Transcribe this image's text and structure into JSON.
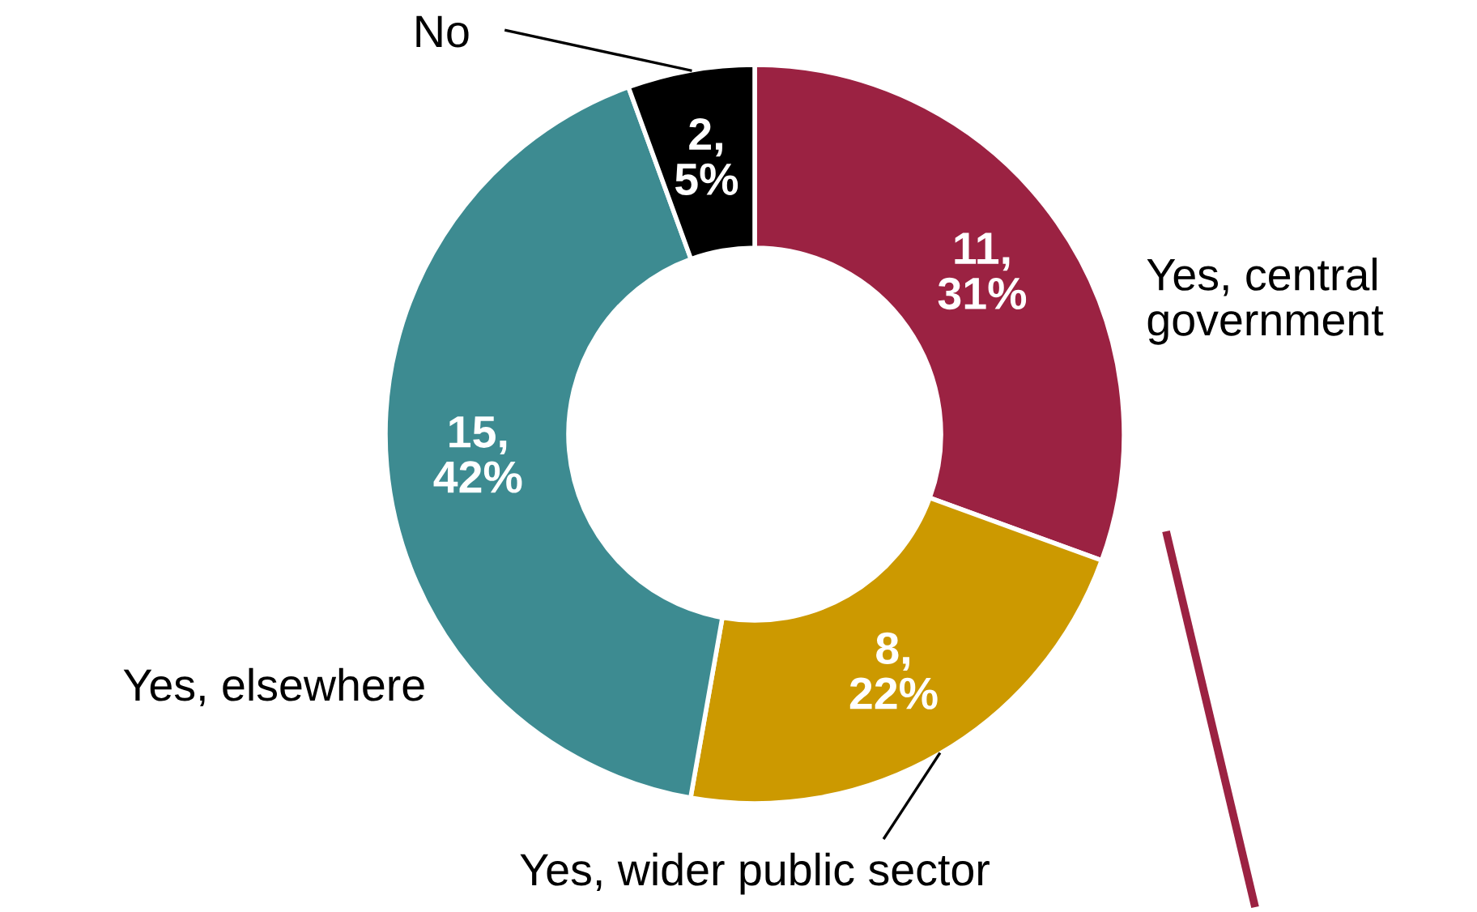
{
  "chart_data": {
    "type": "donut",
    "categories": [
      "Yes, central\ngovernment",
      "Yes, wider public sector",
      "Yes, elsewhere",
      "No"
    ],
    "values": [
      11,
      8,
      15,
      2
    ],
    "value_labels": [
      "11,\n31%",
      "8,\n22%",
      "15,\n42%",
      "2,\n5%"
    ],
    "colors": [
      "#9b2242",
      "#cc9900",
      "#3d8b91",
      "#000000"
    ]
  }
}
